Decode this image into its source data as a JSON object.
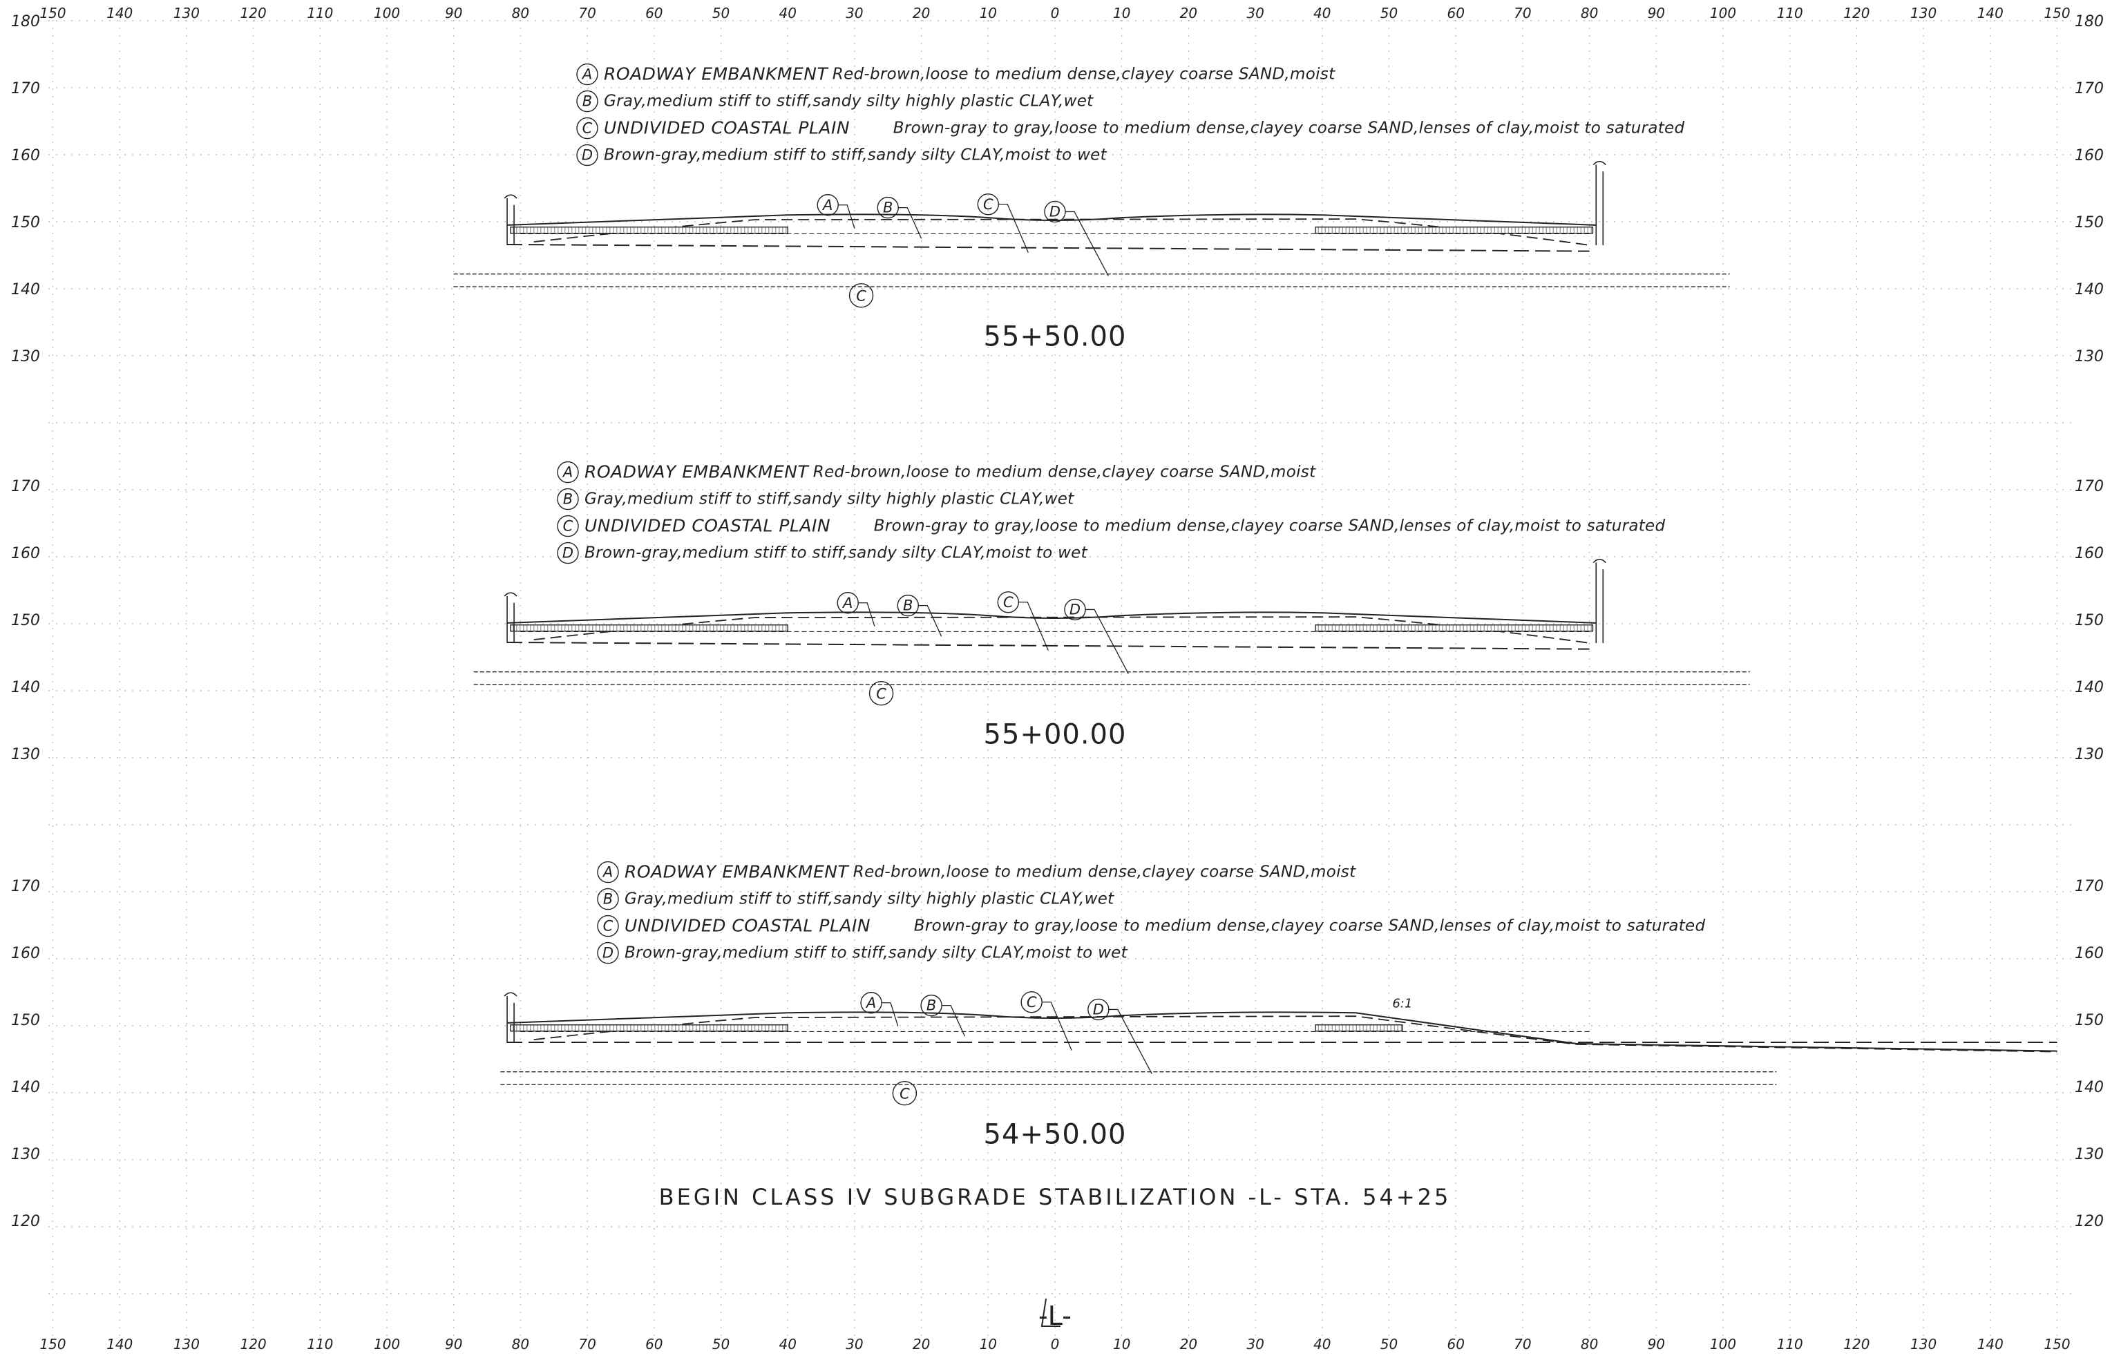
{
  "x_axis": {
    "labels": [
      "150",
      "140",
      "130",
      "120",
      "110",
      "100",
      "90",
      "80",
      "70",
      "60",
      "50",
      "40",
      "30",
      "20",
      "10",
      "0",
      "10",
      "20",
      "30",
      "40",
      "50",
      "60",
      "70",
      "80",
      "90",
      "100",
      "110",
      "120",
      "130",
      "140",
      "150"
    ]
  },
  "sections": [
    {
      "station": "55+50.00",
      "elevations": [
        "180",
        "170",
        "160",
        "150",
        "140",
        "130"
      ],
      "legend": [
        {
          "tag": "A",
          "head": "ROADWAY EMBANKMENT",
          "desc": "Red-brown,loose to medium dense,clayey coarse SAND,moist"
        },
        {
          "tag": "B",
          "head": "",
          "desc": "Gray,medium stiff to stiff,sandy silty highly plastic CLAY,wet"
        },
        {
          "tag": "C",
          "head": "UNDIVIDED COASTAL PLAIN",
          "desc": "Brown-gray to gray,loose to medium dense,clayey coarse SAND,lenses of clay,moist to saturated"
        },
        {
          "tag": "D",
          "head": "",
          "desc": "Brown-gray,medium stiff to stiff,sandy silty CLAY,moist to wet"
        }
      ],
      "layer_tags": [
        "A",
        "B",
        "C",
        "D"
      ],
      "bottom_tag": "C"
    },
    {
      "station": "55+00.00",
      "elevations": [
        "170",
        "160",
        "150",
        "140",
        "130"
      ],
      "legend": [
        {
          "tag": "A",
          "head": "ROADWAY EMBANKMENT",
          "desc": "Red-brown,loose to medium dense,clayey coarse SAND,moist"
        },
        {
          "tag": "B",
          "head": "",
          "desc": "Gray,medium stiff to stiff,sandy silty highly plastic CLAY,wet"
        },
        {
          "tag": "C",
          "head": "UNDIVIDED COASTAL PLAIN",
          "desc": "Brown-gray to gray,loose to medium dense,clayey coarse SAND,lenses of clay,moist to saturated"
        },
        {
          "tag": "D",
          "head": "",
          "desc": "Brown-gray,medium stiff to stiff,sandy silty CLAY,moist to wet"
        }
      ],
      "layer_tags": [
        "A",
        "B",
        "C",
        "D"
      ],
      "bottom_tag": "C"
    },
    {
      "station": "54+50.00",
      "elevations": [
        "170",
        "160",
        "150",
        "140",
        "130",
        "120"
      ],
      "legend": [
        {
          "tag": "A",
          "head": "ROADWAY EMBANKMENT",
          "desc": "Red-brown,loose to medium dense,clayey coarse SAND,moist"
        },
        {
          "tag": "B",
          "head": "",
          "desc": "Gray,medium stiff to stiff,sandy silty highly plastic CLAY,wet"
        },
        {
          "tag": "C",
          "head": "UNDIVIDED COASTAL PLAIN",
          "desc": "Brown-gray to gray,loose to medium dense,clayey coarse SAND,lenses of clay,moist to saturated"
        },
        {
          "tag": "D",
          "head": "",
          "desc": "Brown-gray,medium stiff to stiff,sandy silty CLAY,moist to wet"
        }
      ],
      "layer_tags": [
        "A",
        "B",
        "C",
        "D"
      ],
      "bottom_tag": "C",
      "slope_label": "6:1"
    }
  ],
  "note": "BEGIN CLASS IV SUBGRADE STABILIZATION -L- STA. 54+25",
  "alignment_label": "-L-",
  "colors": {
    "line": "#222222",
    "grid": "#b5b5b5"
  }
}
